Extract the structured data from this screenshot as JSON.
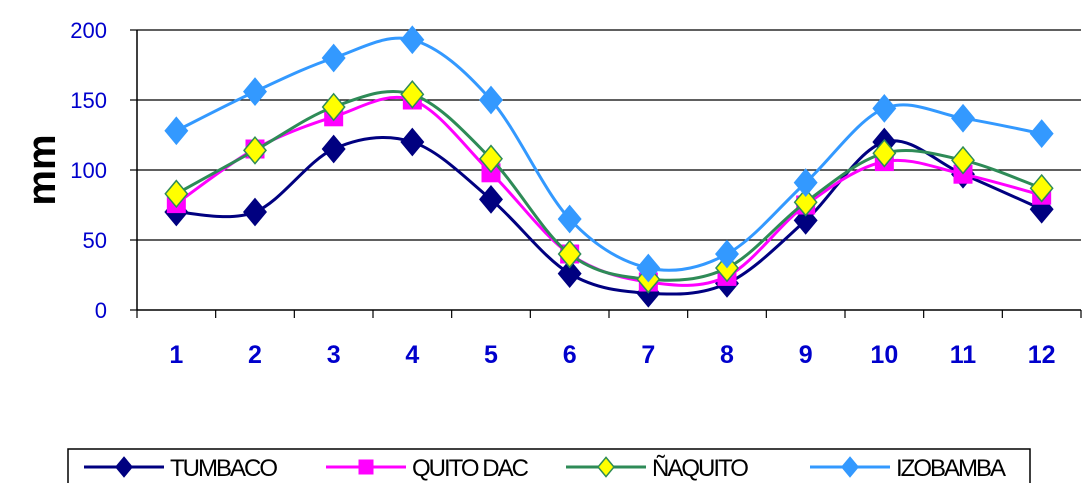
{
  "chart_data": {
    "type": "line",
    "title": "",
    "xlabel": "",
    "ylabel": "mm",
    "ylim": [
      0,
      200
    ],
    "yticks": [
      0,
      50,
      100,
      150,
      200
    ],
    "categories": [
      "1",
      "2",
      "3",
      "4",
      "5",
      "6",
      "7",
      "8",
      "9",
      "10",
      "11",
      "12"
    ],
    "grid": "horizontal",
    "legend_position": "bottom",
    "series": [
      {
        "name": "TUMBACO",
        "color": "#000080",
        "marker": "diamond",
        "values": [
          70,
          70,
          115,
          120,
          79,
          26,
          12,
          19,
          64,
          120,
          97,
          72
        ]
      },
      {
        "name": "QUITO DAC",
        "color": "#ff00ff",
        "marker": "square",
        "values": [
          76,
          115,
          138,
          150,
          98,
          40,
          20,
          24,
          75,
          106,
          97,
          82
        ]
      },
      {
        "name": "ÑAQUITO",
        "color": "#2e8b57",
        "marker_fill": "#ffff00",
        "marker": "diamond",
        "values": [
          83,
          114,
          145,
          154,
          108,
          40,
          22,
          30,
          77,
          112,
          107,
          87
        ]
      },
      {
        "name": "IZOBAMBA",
        "color": "#3399ff",
        "marker": "diamond",
        "values": [
          128,
          156,
          180,
          193,
          150,
          65,
          30,
          40,
          91,
          144,
          137,
          126
        ]
      }
    ]
  }
}
